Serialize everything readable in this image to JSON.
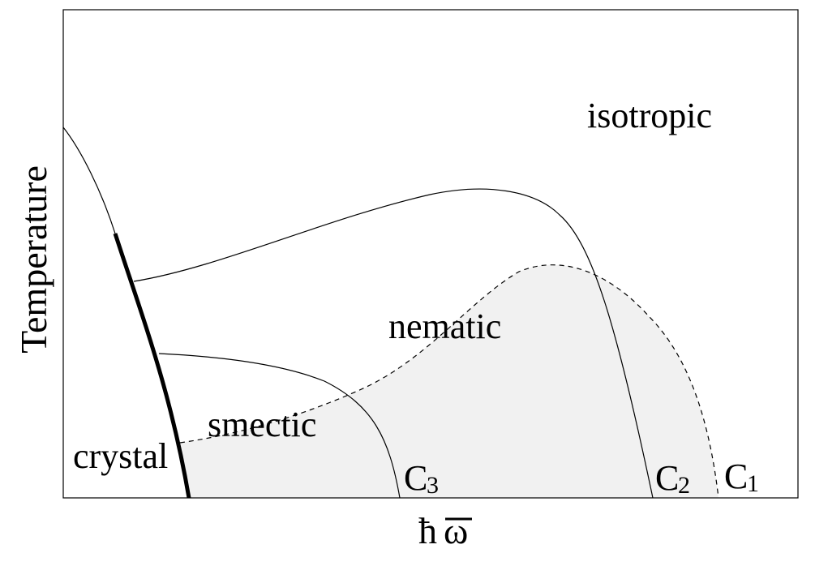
{
  "diagram": {
    "regions": {
      "isotropic": "isotropic",
      "nematic": "nematic",
      "smectic": "smectic",
      "crystal": "crystal"
    },
    "curves": {
      "c1": {
        "letter": "C",
        "sub": "1"
      },
      "c2": {
        "letter": "C",
        "sub": "2"
      },
      "c3": {
        "letter": "C",
        "sub": "3"
      }
    },
    "axes": {
      "y_label": "Temperature",
      "x_symbol_h": "ħ",
      "x_symbol_omega": "ω"
    },
    "colors": {
      "shaded_region": "#f1f1f1",
      "lines": "#000000",
      "background": "#ffffff"
    },
    "line_styles": {
      "crystal_boundary": "thick solid",
      "c1": "dashed",
      "c2": "solid",
      "c3": "solid"
    }
  }
}
